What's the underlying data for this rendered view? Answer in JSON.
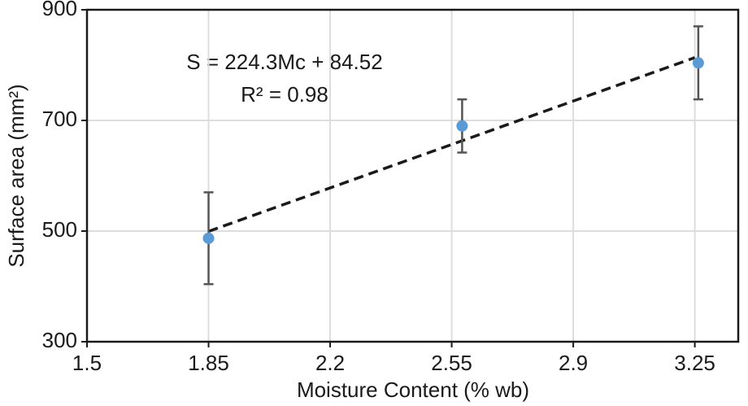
{
  "chart_data": {
    "type": "scatter",
    "x_label": "Moisture Content (% wb)",
    "y_label": "Surface area (mm²)",
    "annotations": [
      "S = 224.3Mc + 84.52",
      "R² = 0.98"
    ],
    "x": [
      1.85,
      2.58,
      3.26
    ],
    "values": [
      487,
      690,
      804
    ],
    "errors": [
      83,
      48,
      66
    ],
    "color": "#5b9bd5",
    "error_color": "#555555",
    "fit_line": {
      "x": [
        1.85,
        3.25
      ],
      "values": [
        499.5,
        813.5
      ],
      "color": "#1a1a1a",
      "dashed": true
    },
    "xlim": [
      1.5,
      3.375
    ],
    "xticks": [
      1.5,
      1.85,
      2.2,
      2.55,
      2.9,
      3.25
    ],
    "ylim": [
      300,
      900
    ],
    "yticks": [
      300,
      500,
      700,
      900
    ],
    "grid": true
  }
}
